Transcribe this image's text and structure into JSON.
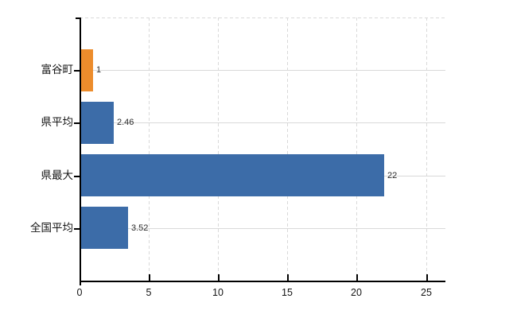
{
  "chart_data": {
    "type": "bar",
    "orientation": "horizontal",
    "title": "",
    "xlabel": "",
    "ylabel": "",
    "categories": [
      "富谷町",
      "県平均",
      "県最大",
      "全国平均"
    ],
    "values": [
      1,
      2.46,
      22,
      3.52
    ],
    "value_labels": [
      "1",
      "2.46",
      "22",
      "3.52"
    ],
    "bar_colors": [
      "#ec8c2c",
      "#3c6ca8",
      "#3c6ca8",
      "#3c6ca8"
    ],
    "x_tick_values": [
      0,
      5,
      10,
      15,
      20,
      25
    ],
    "x_tick_labels": [
      "0",
      "5",
      "10",
      "15",
      "20",
      "25"
    ],
    "xlim": [
      0,
      26.4
    ],
    "grid": "vertical-dashed-and-horizontal-solid",
    "legend_position": "none"
  },
  "colors": {
    "bar_orange": "#ec8c2c",
    "bar_blue": "#3c6ca8",
    "gridline": "#d9d9d9",
    "axis": "#000000",
    "background": "#ffffff",
    "text": "#141414",
    "value_text": "#2b2b2b"
  }
}
